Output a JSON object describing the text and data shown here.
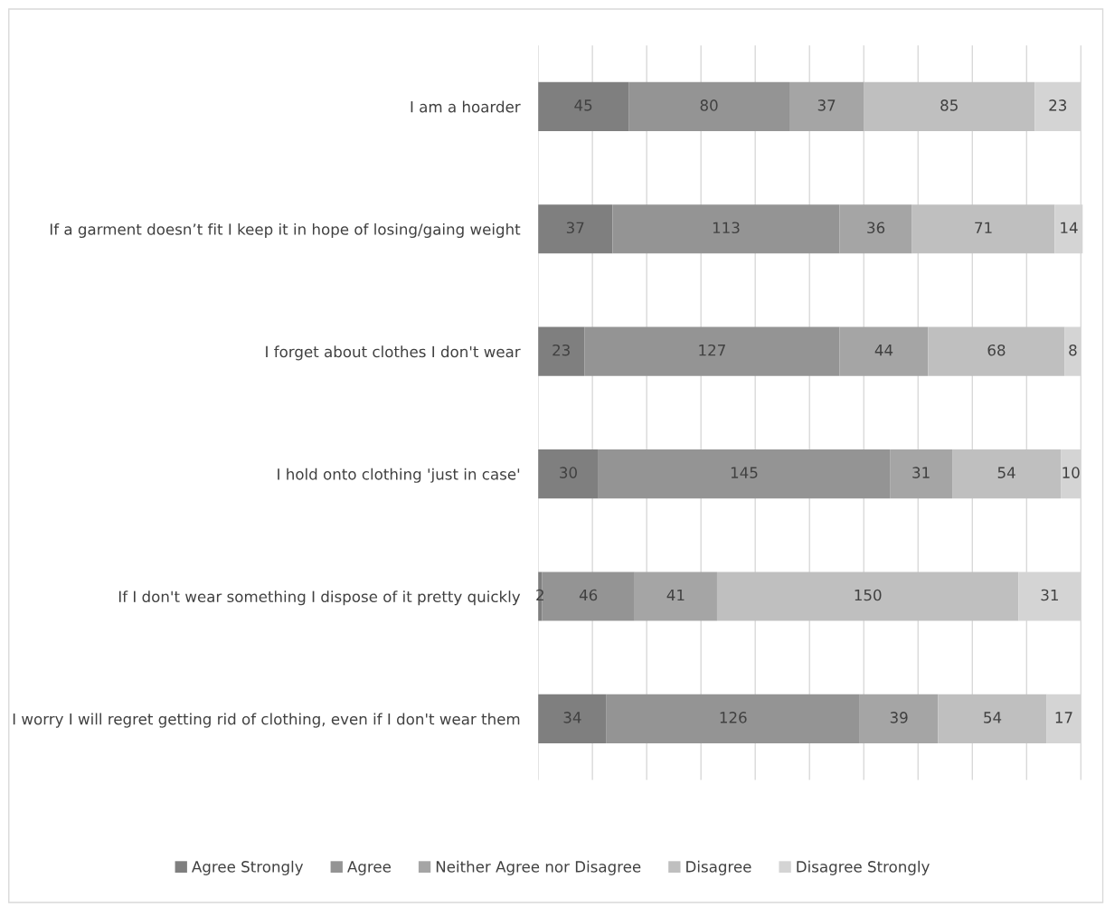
{
  "chart_data": {
    "type": "bar",
    "orientation": "horizontal",
    "stacked": true,
    "data_labels": true,
    "grid": "x",
    "legend": "bottom",
    "tick_labels": "y",
    "categories": [
      "I am a hoarder",
      "If a garment doesn’t fit I keep it in hope of losing/gaing weight",
      "I forget about clothes I don't wear",
      "I hold onto clothing 'just in case'",
      "If I don't wear something I dispose of it pretty quickly",
      "I worry I will regret getting rid of clothing, even if I don't wear them"
    ],
    "xlim": [
      0,
      271
    ],
    "xticks": [
      {
        "value": 0,
        "label": null
      },
      {
        "value": 27,
        "label": null
      },
      {
        "value": 54,
        "label": null
      },
      {
        "value": 81,
        "label": null
      },
      {
        "value": 108,
        "label": null
      },
      {
        "value": 135,
        "label": null
      },
      {
        "value": 162,
        "label": null
      },
      {
        "value": 189,
        "label": null
      },
      {
        "value": 216,
        "label": null
      },
      {
        "value": 243,
        "label": null
      },
      {
        "value": 270,
        "label": null
      }
    ],
    "series": [
      {
        "name": "Agree Strongly",
        "color": "#7f7f7f",
        "values": [
          45,
          37,
          23,
          30,
          2,
          34
        ]
      },
      {
        "name": "Agree",
        "color": "#949494",
        "values": [
          80,
          113,
          127,
          145,
          46,
          126
        ]
      },
      {
        "name": "Neither Agree nor Disagree",
        "color": "#a5a5a5",
        "values": [
          37,
          36,
          44,
          31,
          41,
          39
        ]
      },
      {
        "name": "Disagree",
        "color": "#bfbfbf",
        "values": [
          85,
          71,
          68,
          54,
          150,
          54
        ]
      },
      {
        "name": "Disagree Strongly",
        "color": "#d4d4d4",
        "values": [
          23,
          14,
          8,
          10,
          31,
          17
        ]
      }
    ]
  }
}
